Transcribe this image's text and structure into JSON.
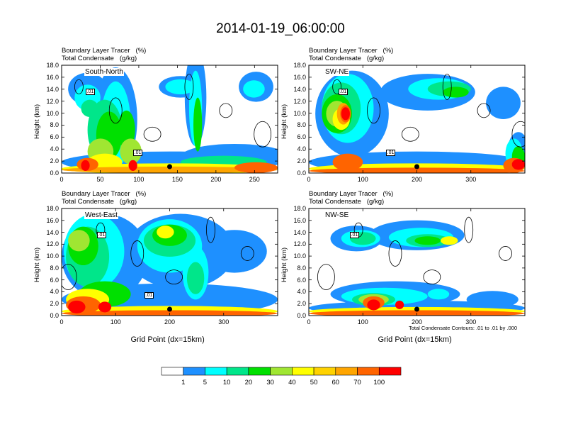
{
  "title": "2014-01-19_06:00:00",
  "panel_titles": {
    "line1": "Boundary Layer Tracer   (%)",
    "line2": "Total Condensate   (g/kg)"
  },
  "x_axis_title": "Grid Point (dx=15km)",
  "y_axis_title": "Height (km)",
  "contour_note": "Total Condensate Contours: .01 to .01 by .000",
  "colors": [
    "#ffffff",
    "#1e90ff",
    "#00ffff",
    "#00e68a",
    "#00e000",
    "#a0e632",
    "#ffff00",
    "#ffd200",
    "#ffa500",
    "#ff6400",
    "#ff0000"
  ],
  "chart_data": [
    {
      "type": "heatmap",
      "name": "South-North",
      "title": "Boundary Layer Tracer (%) / Total Condensate (g/kg)",
      "xlabel": "",
      "ylabel": "Height (km)",
      "xlim": [
        0,
        280
      ],
      "ylim": [
        0,
        18
      ],
      "xticks": [
        0,
        50,
        100,
        150,
        200,
        250
      ],
      "yticks": [
        "0.0",
        "2.0",
        "4.0",
        "6.0",
        "8.0",
        "10.0",
        "12.0",
        "14.0",
        "16.0",
        "18.0"
      ],
      "contour_labels": [
        ".01",
        ".01"
      ],
      "marker_x": 140
    },
    {
      "type": "heatmap",
      "name": "SW-NE",
      "title": "Boundary Layer Tracer (%) / Total Condensate (g/kg)",
      "xlabel": "",
      "ylabel": "Height (km)",
      "xlim": [
        0,
        400
      ],
      "ylim": [
        0,
        18
      ],
      "xticks": [
        0,
        100,
        200,
        300
      ],
      "yticks": [
        "0.0",
        "2.0",
        "4.0",
        "6.0",
        "8.0",
        "10.0",
        "12.0",
        "14.0",
        "16.0",
        "18.0"
      ],
      "contour_labels": [
        ".01",
        ".01"
      ],
      "marker_x": 200
    },
    {
      "type": "heatmap",
      "name": "West-East",
      "title": "Boundary Layer Tracer (%) / Total Condensate (g/kg)",
      "xlabel": "Grid Point (dx=15km)",
      "ylabel": "Height (km)",
      "xlim": [
        0,
        400
      ],
      "ylim": [
        0,
        18
      ],
      "xticks": [
        0,
        100,
        200,
        300
      ],
      "yticks": [
        "0.0",
        "2.0",
        "4.0",
        "6.0",
        "8.0",
        "10.0",
        "12.0",
        "14.0",
        "16.0",
        "18.0"
      ],
      "contour_labels": [
        ".01",
        ".01"
      ],
      "marker_x": 200
    },
    {
      "type": "heatmap",
      "name": "NW-SE",
      "title": "Boundary Layer Tracer (%) / Total Condensate (g/kg)",
      "xlabel": "Grid Point (dx=15km)",
      "ylabel": "Height (km)",
      "xlim": [
        0,
        400
      ],
      "ylim": [
        0,
        18
      ],
      "xticks": [
        0,
        100,
        200,
        300
      ],
      "yticks": [
        "0.0",
        "2.0",
        "4.0",
        "6.0",
        "8.0",
        "10.0",
        "12.0",
        "14.0",
        "16.0",
        "18.0"
      ],
      "contour_labels": [
        ".01"
      ],
      "marker_x": 200
    }
  ],
  "legend": {
    "levels": [
      "1",
      "5",
      "10",
      "20",
      "30",
      "40",
      "50",
      "60",
      "70",
      "100"
    ]
  }
}
